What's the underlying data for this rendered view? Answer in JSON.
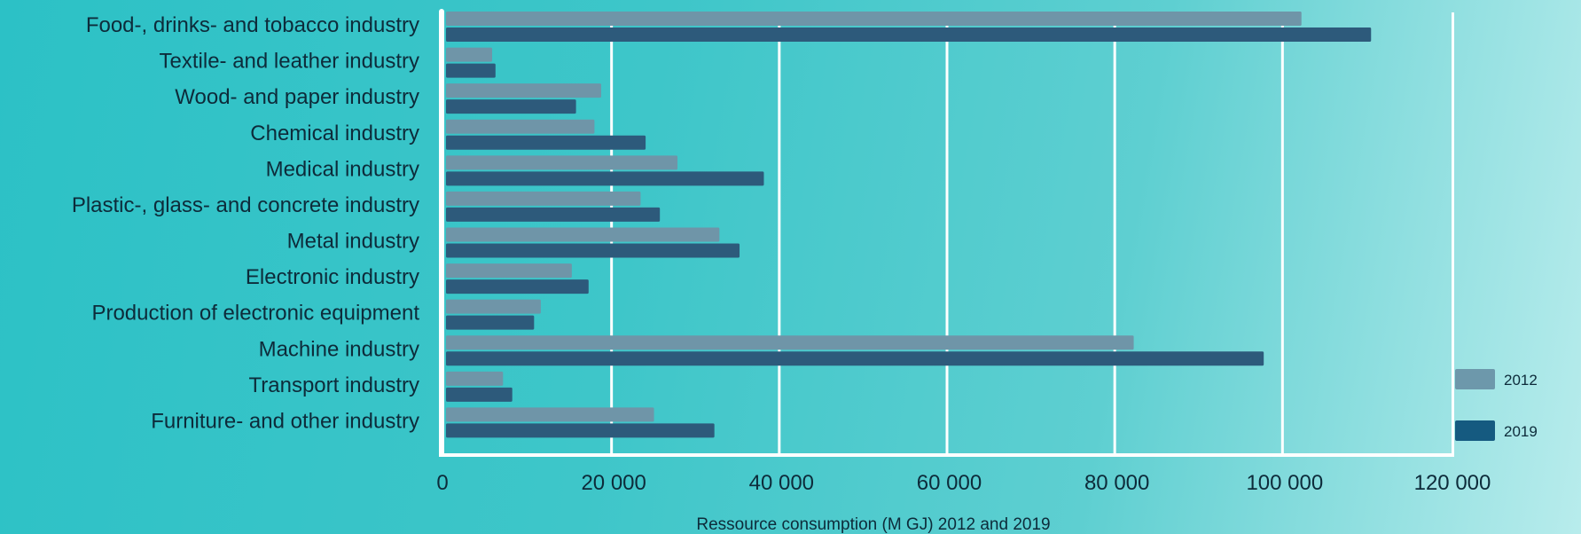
{
  "chart_data": {
    "type": "bar",
    "orientation": "horizontal",
    "categories": [
      "Food-, drinks- and tobacco industry",
      "Textile- and leather industry",
      "Wood- and paper industry",
      "Chemical industry",
      "Medical industry",
      "Plastic-, glass- and concrete industry",
      "Metal industry",
      "Electronic industry",
      "Production of electronic equipment",
      "Machine industry",
      "Transport industry",
      "Furniture- and other industry"
    ],
    "series": [
      {
        "name": "2012",
        "color": "#6f95a8",
        "values": [
          102000,
          5500,
          18500,
          17700,
          27600,
          23200,
          32600,
          15000,
          11300,
          82000,
          6800,
          24800
        ]
      },
      {
        "name": "2019",
        "color": "#2d5a7b",
        "values": [
          110300,
          5900,
          15500,
          23800,
          37900,
          25500,
          35000,
          17000,
          10500,
          97500,
          7900,
          32000
        ]
      }
    ],
    "xlim": [
      0,
      120000
    ],
    "xticks": [
      0,
      20000,
      40000,
      60000,
      80000,
      100000,
      120000
    ],
    "xtick_labels": [
      "0",
      "20 000",
      "40 000",
      "60 000",
      "80 000",
      "100 000",
      "120 000"
    ],
    "xlabel": "Ressource consumption (M GJ) 2012 and 2019",
    "ylabel": "",
    "title": "",
    "grid": true,
    "legend": {
      "placement": "right-bottom",
      "items": [
        {
          "label": "2012",
          "color": "#6d98ab"
        },
        {
          "label": "2019",
          "color": "#155a80"
        }
      ]
    }
  }
}
